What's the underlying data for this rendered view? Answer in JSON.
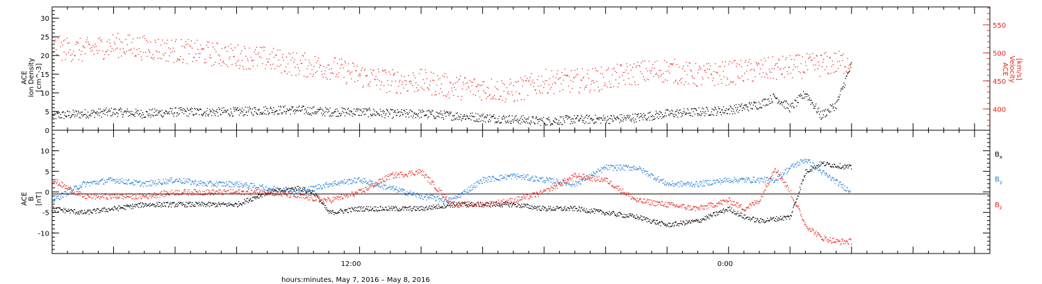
{
  "chart_data": [
    {
      "type": "scatter",
      "panel": "top",
      "left_axis": {
        "label_lines": [
          "ACE",
          "Ion Density",
          "[cm^-3]"
        ],
        "ylim": [
          0,
          33
        ],
        "ticks": [
          0,
          5,
          10,
          15,
          20,
          25,
          30
        ]
      },
      "right_axis": {
        "label_lines": [
          "ACE",
          "Velocity",
          "[km/s]"
        ],
        "ylim": [
          362,
          582
        ],
        "ticks": [
          400,
          450,
          500,
          550
        ],
        "color": "#e8221a"
      },
      "series": [
        {
          "color": "#000000",
          "axis": "left",
          "anchors_x_hours": [
            0,
            1,
            2,
            3,
            4,
            5,
            6,
            7,
            8,
            9,
            10,
            11,
            12,
            13,
            14,
            15,
            16,
            17,
            18,
            19,
            20,
            21,
            22,
            23,
            23.5,
            24,
            24.5,
            25,
            25.5,
            26.0
          ],
          "anchors_y": [
            4,
            4.5,
            5,
            4.5,
            5,
            5,
            5,
            5.5,
            5.5,
            5,
            5,
            4.5,
            4.5,
            4,
            3.5,
            3,
            2.5,
            3,
            3,
            3.5,
            4.5,
            5,
            5.5,
            7,
            9,
            6,
            10,
            4,
            7,
            18
          ]
        },
        {
          "color": "#e8221a",
          "axis": "right",
          "anchors_x_hours": [
            0,
            1,
            2,
            3,
            4,
            5,
            6,
            7,
            8,
            9,
            10,
            11,
            12,
            13,
            14,
            15,
            16,
            17,
            18,
            19,
            20,
            21,
            22,
            23,
            24,
            25,
            26.0
          ],
          "anchors_y": [
            510,
            505,
            515,
            510,
            505,
            500,
            495,
            490,
            480,
            475,
            460,
            450,
            450,
            440,
            438,
            432,
            450,
            450,
            455,
            465,
            470,
            460,
            465,
            470,
            475,
            480,
            485
          ]
        }
      ]
    },
    {
      "type": "scatter",
      "panel": "bottom",
      "left_axis": {
        "label_lines": [
          "ACE",
          "B",
          "[nT]"
        ],
        "ylim": [
          -15,
          15
        ],
        "ticks": [
          -10,
          -5,
          0,
          5,
          10
        ]
      },
      "series": [
        {
          "name": "Bx",
          "color": "#000000",
          "anchors_x_hours": [
            0,
            1,
            2,
            3,
            4,
            5,
            6,
            7,
            8,
            8.5,
            9,
            10,
            10.5,
            11,
            12,
            13,
            14,
            15,
            16,
            17,
            18,
            19,
            20,
            21,
            22,
            22.5,
            23,
            24,
            24.5,
            25,
            26.0
          ],
          "anchors_y": [
            -4,
            -5,
            -4,
            -3,
            -3,
            -3,
            -3,
            0,
            1,
            0,
            -5,
            -4,
            -4,
            -4,
            -4,
            -3,
            -3,
            -3,
            -4,
            -4,
            -5,
            -6,
            -8,
            -7,
            -4,
            -6,
            -7,
            -6,
            5,
            7,
            6
          ]
        },
        {
          "name": "By",
          "color": "#1e7ad8",
          "anchors_x_hours": [
            0,
            1,
            2,
            3,
            4,
            5,
            6,
            7,
            8,
            9,
            10,
            11,
            12,
            13,
            14,
            15,
            16,
            17,
            18,
            19,
            20,
            21,
            22,
            23,
            23.5,
            24,
            24.5,
            25,
            26.0
          ],
          "anchors_y": [
            -2,
            2,
            3,
            2,
            3,
            2,
            2,
            1,
            0,
            2,
            3,
            1,
            -1,
            -2,
            3,
            4,
            3,
            2,
            6,
            6,
            2,
            2,
            3,
            3,
            3,
            6,
            8,
            5,
            0
          ]
        },
        {
          "name": "Bz",
          "color": "#e8221a",
          "anchors_x_hours": [
            0,
            1,
            2,
            3,
            4,
            5,
            6,
            7,
            8,
            9,
            10,
            11,
            12,
            13,
            14,
            15,
            16,
            17,
            18,
            19,
            20,
            21,
            22,
            22.5,
            23,
            23.5,
            24,
            24.5,
            25,
            25.5,
            26.0
          ],
          "anchors_y": [
            3,
            -1,
            -1,
            -1,
            0,
            0,
            0,
            0,
            -1,
            -2,
            0,
            4,
            5,
            -3,
            -3,
            -2,
            0,
            4,
            3,
            -2,
            -3,
            -4,
            -2,
            -4,
            -2,
            6,
            0,
            -8,
            -11,
            -12,
            -12
          ]
        }
      ],
      "labels": [
        "B",
        "B",
        "B"
      ],
      "label_subscripts": [
        "x",
        "y",
        "z"
      ]
    }
  ],
  "x_axis": {
    "xlim_hours": [
      0,
      30.5
    ],
    "start_hour_offset": 0,
    "tick_labels": [
      {
        "hour": 9.72,
        "text": "12:00"
      },
      {
        "hour": 21.89,
        "text": "0:00"
      }
    ],
    "title": "hours:minutes,   May  7, 2016 – May  8, 2016"
  }
}
